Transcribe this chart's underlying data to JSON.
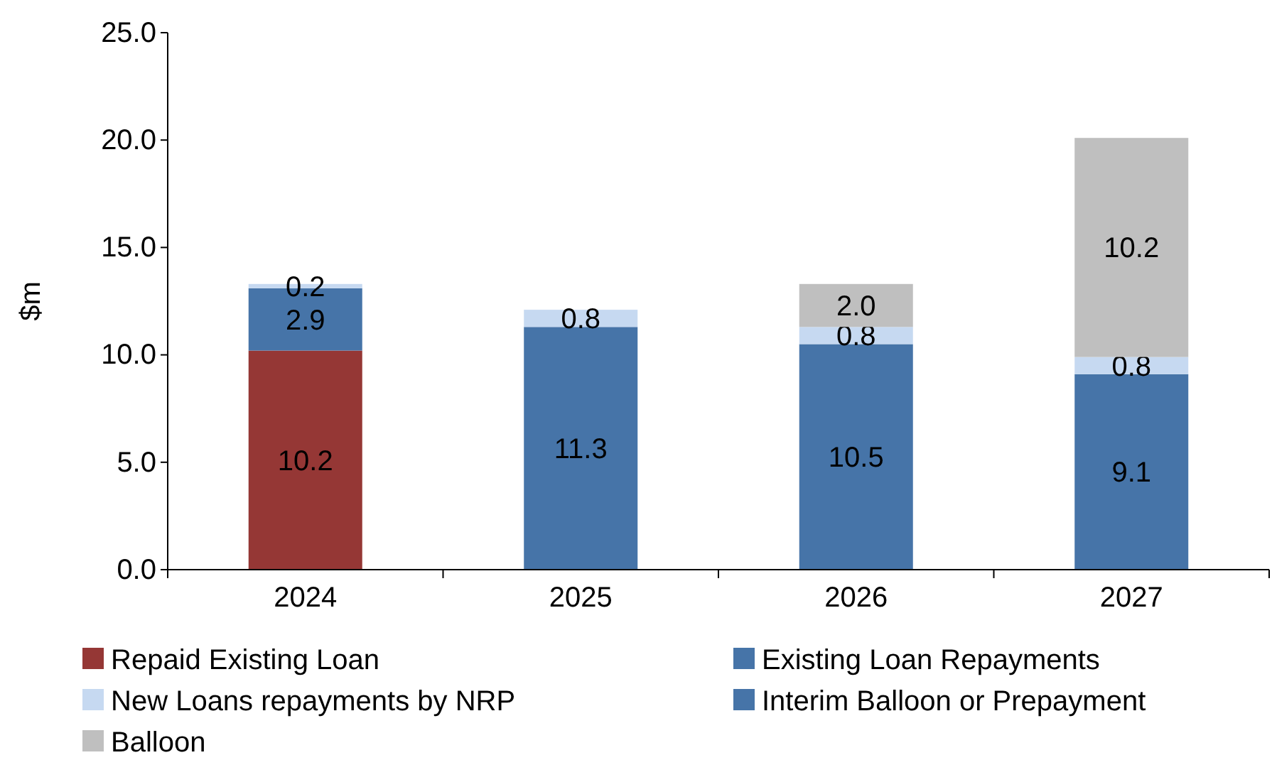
{
  "chart_data": {
    "type": "bar",
    "stacked": true,
    "ylabel": "$m",
    "categories": [
      "2024",
      "2025",
      "2026",
      "2027"
    ],
    "ylim": [
      0,
      25
    ],
    "yticks": [
      {
        "value": 0,
        "label": "0.0"
      },
      {
        "value": 5,
        "label": "5.0"
      },
      {
        "value": 10,
        "label": "10.0"
      },
      {
        "value": 15,
        "label": "15.0"
      },
      {
        "value": 20,
        "label": "20.0"
      },
      {
        "value": 25,
        "label": "25.0"
      }
    ],
    "grid": false,
    "legend": "bottom",
    "series": [
      {
        "name": "Repaid Existing Loan",
        "color": "#953735",
        "values": [
          10.2,
          null,
          null,
          null
        ],
        "value_labels": [
          "10.2",
          null,
          null,
          null
        ]
      },
      {
        "name": "Existing Loan Repayments",
        "color": "#4674a8",
        "values": [
          2.9,
          11.3,
          10.5,
          9.1
        ],
        "value_labels": [
          "2.9",
          "11.3",
          "10.5",
          "9.1"
        ]
      },
      {
        "name": "New Loans repayments by NRP",
        "color": "#c6d9f1",
        "values": [
          0.2,
          0.8,
          0.8,
          0.8
        ],
        "value_labels": [
          "0.2",
          "0.8",
          "0.8",
          "0.8"
        ]
      },
      {
        "name": "Interim Balloon or Prepayment",
        "color": "#4674a8",
        "values": [
          null,
          null,
          null,
          null
        ]
      },
      {
        "name": "Balloon",
        "color": "#bfbfbf",
        "values": [
          null,
          null,
          2.0,
          10.2
        ],
        "value_labels": [
          null,
          null,
          "2.0",
          "10.2"
        ]
      }
    ]
  }
}
